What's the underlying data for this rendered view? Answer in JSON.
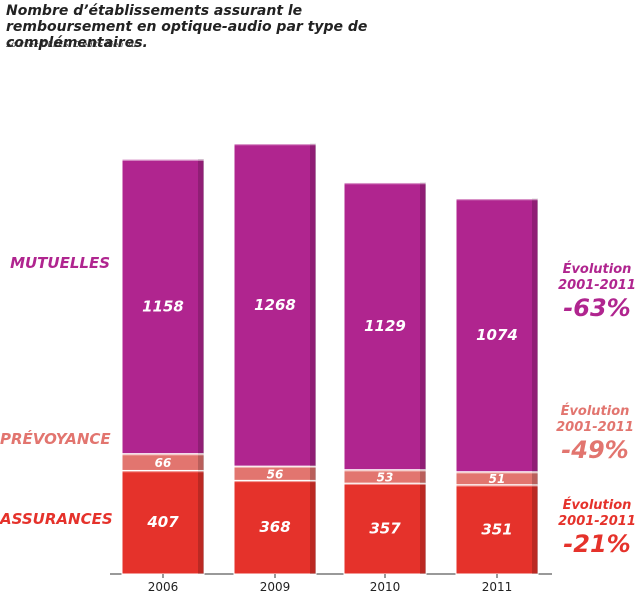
{
  "title": "Nombre d’établissements assurant le remboursement en optique-audio par type de complémentaires.",
  "source": "Source : DREES. Crédit : Bien Vu",
  "colors": {
    "mutuelles": "#b0258f",
    "prevoyance": "#e2756f",
    "assurances": "#e5322b",
    "axis": "#333333"
  },
  "categories_labels": {
    "mutuelles": "MUTUELLES",
    "prevoyance": "PRÉVOYANCE",
    "assurances": "ASSURANCES"
  },
  "evolutions": [
    {
      "key": "mutuelles",
      "line1": "Évolution",
      "line2": "2001-2011",
      "pct": "-63%"
    },
    {
      "key": "prevoyance",
      "line1": "Évolution",
      "line2": "2001-2011",
      "pct": "-49%"
    },
    {
      "key": "assurances",
      "line1": "Évolution",
      "line2": "2001-2011",
      "pct": "-21%"
    }
  ],
  "chart_data": {
    "type": "bar",
    "stacked": true,
    "categories": [
      "2006",
      "2009",
      "2010",
      "2011"
    ],
    "series": [
      {
        "name": "ASSURANCES",
        "key": "assurances",
        "values": [
          407,
          368,
          357,
          351
        ]
      },
      {
        "name": "PRÉVOYANCE",
        "key": "prevoyance",
        "values": [
          66,
          56,
          53,
          51
        ]
      },
      {
        "name": "MUTUELLES",
        "key": "mutuelles",
        "values": [
          1158,
          1268,
          1129,
          1074
        ]
      }
    ],
    "grid": false,
    "legend": "left"
  }
}
